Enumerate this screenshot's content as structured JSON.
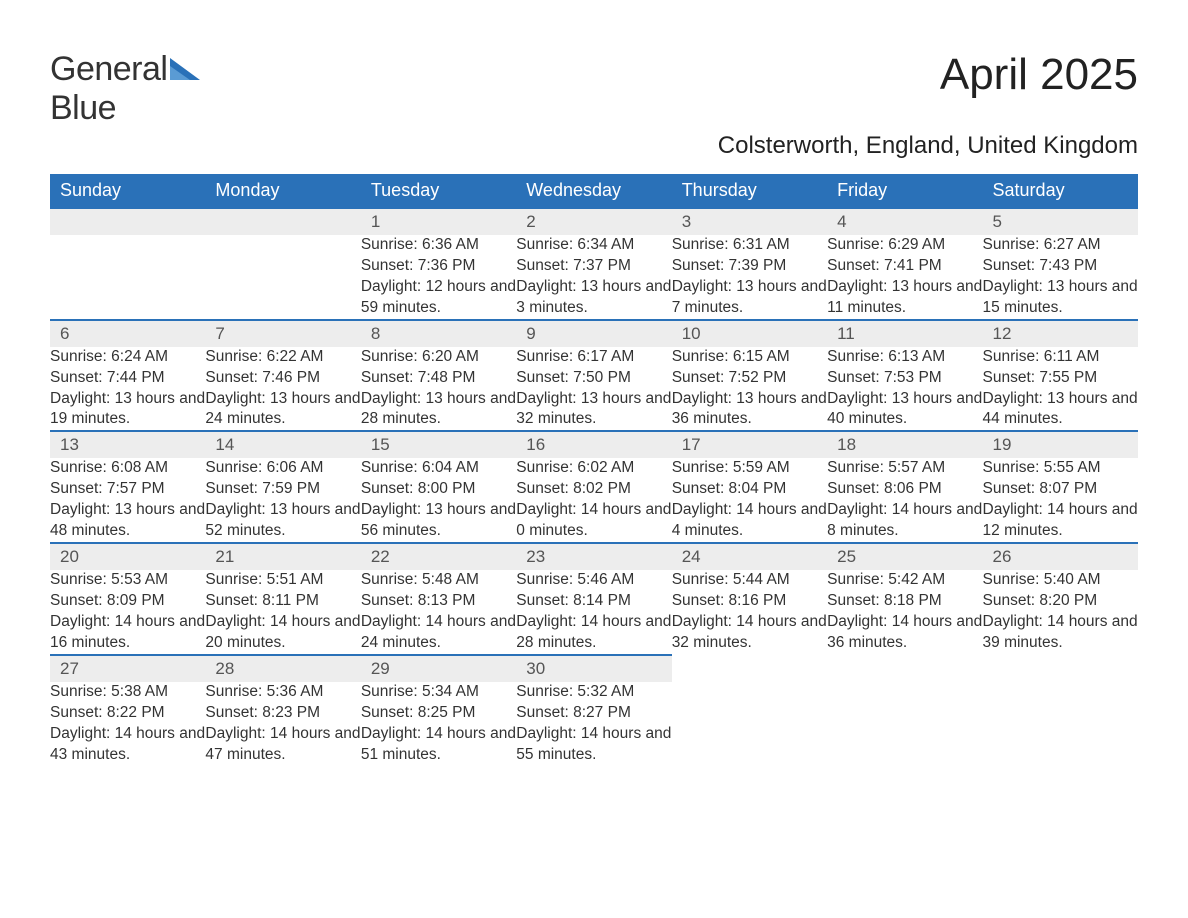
{
  "brand": {
    "general": "General",
    "blue": "Blue"
  },
  "title": "April 2025",
  "location": "Colsterworth, England, United Kingdom",
  "colors": {
    "header_bg": "#2a71b8",
    "header_text": "#ffffff",
    "daynum_bg": "#ededed",
    "row_border": "#2a71b8",
    "body_text": "#333333",
    "background": "#ffffff"
  },
  "day_labels": [
    "Sunday",
    "Monday",
    "Tuesday",
    "Wednesday",
    "Thursday",
    "Friday",
    "Saturday"
  ],
  "weeks": [
    [
      null,
      null,
      {
        "num": "1",
        "sunrise": "Sunrise: 6:36 AM",
        "sunset": "Sunset: 7:36 PM",
        "daylight": "Daylight: 12 hours and 59 minutes."
      },
      {
        "num": "2",
        "sunrise": "Sunrise: 6:34 AM",
        "sunset": "Sunset: 7:37 PM",
        "daylight": "Daylight: 13 hours and 3 minutes."
      },
      {
        "num": "3",
        "sunrise": "Sunrise: 6:31 AM",
        "sunset": "Sunset: 7:39 PM",
        "daylight": "Daylight: 13 hours and 7 minutes."
      },
      {
        "num": "4",
        "sunrise": "Sunrise: 6:29 AM",
        "sunset": "Sunset: 7:41 PM",
        "daylight": "Daylight: 13 hours and 11 minutes."
      },
      {
        "num": "5",
        "sunrise": "Sunrise: 6:27 AM",
        "sunset": "Sunset: 7:43 PM",
        "daylight": "Daylight: 13 hours and 15 minutes."
      }
    ],
    [
      {
        "num": "6",
        "sunrise": "Sunrise: 6:24 AM",
        "sunset": "Sunset: 7:44 PM",
        "daylight": "Daylight: 13 hours and 19 minutes."
      },
      {
        "num": "7",
        "sunrise": "Sunrise: 6:22 AM",
        "sunset": "Sunset: 7:46 PM",
        "daylight": "Daylight: 13 hours and 24 minutes."
      },
      {
        "num": "8",
        "sunrise": "Sunrise: 6:20 AM",
        "sunset": "Sunset: 7:48 PM",
        "daylight": "Daylight: 13 hours and 28 minutes."
      },
      {
        "num": "9",
        "sunrise": "Sunrise: 6:17 AM",
        "sunset": "Sunset: 7:50 PM",
        "daylight": "Daylight: 13 hours and 32 minutes."
      },
      {
        "num": "10",
        "sunrise": "Sunrise: 6:15 AM",
        "sunset": "Sunset: 7:52 PM",
        "daylight": "Daylight: 13 hours and 36 minutes."
      },
      {
        "num": "11",
        "sunrise": "Sunrise: 6:13 AM",
        "sunset": "Sunset: 7:53 PM",
        "daylight": "Daylight: 13 hours and 40 minutes."
      },
      {
        "num": "12",
        "sunrise": "Sunrise: 6:11 AM",
        "sunset": "Sunset: 7:55 PM",
        "daylight": "Daylight: 13 hours and 44 minutes."
      }
    ],
    [
      {
        "num": "13",
        "sunrise": "Sunrise: 6:08 AM",
        "sunset": "Sunset: 7:57 PM",
        "daylight": "Daylight: 13 hours and 48 minutes."
      },
      {
        "num": "14",
        "sunrise": "Sunrise: 6:06 AM",
        "sunset": "Sunset: 7:59 PM",
        "daylight": "Daylight: 13 hours and 52 minutes."
      },
      {
        "num": "15",
        "sunrise": "Sunrise: 6:04 AM",
        "sunset": "Sunset: 8:00 PM",
        "daylight": "Daylight: 13 hours and 56 minutes."
      },
      {
        "num": "16",
        "sunrise": "Sunrise: 6:02 AM",
        "sunset": "Sunset: 8:02 PM",
        "daylight": "Daylight: 14 hours and 0 minutes."
      },
      {
        "num": "17",
        "sunrise": "Sunrise: 5:59 AM",
        "sunset": "Sunset: 8:04 PM",
        "daylight": "Daylight: 14 hours and 4 minutes."
      },
      {
        "num": "18",
        "sunrise": "Sunrise: 5:57 AM",
        "sunset": "Sunset: 8:06 PM",
        "daylight": "Daylight: 14 hours and 8 minutes."
      },
      {
        "num": "19",
        "sunrise": "Sunrise: 5:55 AM",
        "sunset": "Sunset: 8:07 PM",
        "daylight": "Daylight: 14 hours and 12 minutes."
      }
    ],
    [
      {
        "num": "20",
        "sunrise": "Sunrise: 5:53 AM",
        "sunset": "Sunset: 8:09 PM",
        "daylight": "Daylight: 14 hours and 16 minutes."
      },
      {
        "num": "21",
        "sunrise": "Sunrise: 5:51 AM",
        "sunset": "Sunset: 8:11 PM",
        "daylight": "Daylight: 14 hours and 20 minutes."
      },
      {
        "num": "22",
        "sunrise": "Sunrise: 5:48 AM",
        "sunset": "Sunset: 8:13 PM",
        "daylight": "Daylight: 14 hours and 24 minutes."
      },
      {
        "num": "23",
        "sunrise": "Sunrise: 5:46 AM",
        "sunset": "Sunset: 8:14 PM",
        "daylight": "Daylight: 14 hours and 28 minutes."
      },
      {
        "num": "24",
        "sunrise": "Sunrise: 5:44 AM",
        "sunset": "Sunset: 8:16 PM",
        "daylight": "Daylight: 14 hours and 32 minutes."
      },
      {
        "num": "25",
        "sunrise": "Sunrise: 5:42 AM",
        "sunset": "Sunset: 8:18 PM",
        "daylight": "Daylight: 14 hours and 36 minutes."
      },
      {
        "num": "26",
        "sunrise": "Sunrise: 5:40 AM",
        "sunset": "Sunset: 8:20 PM",
        "daylight": "Daylight: 14 hours and 39 minutes."
      }
    ],
    [
      {
        "num": "27",
        "sunrise": "Sunrise: 5:38 AM",
        "sunset": "Sunset: 8:22 PM",
        "daylight": "Daylight: 14 hours and 43 minutes."
      },
      {
        "num": "28",
        "sunrise": "Sunrise: 5:36 AM",
        "sunset": "Sunset: 8:23 PM",
        "daylight": "Daylight: 14 hours and 47 minutes."
      },
      {
        "num": "29",
        "sunrise": "Sunrise: 5:34 AM",
        "sunset": "Sunset: 8:25 PM",
        "daylight": "Daylight: 14 hours and 51 minutes."
      },
      {
        "num": "30",
        "sunrise": "Sunrise: 5:32 AM",
        "sunset": "Sunset: 8:27 PM",
        "daylight": "Daylight: 14 hours and 55 minutes."
      },
      null,
      null,
      null
    ]
  ]
}
